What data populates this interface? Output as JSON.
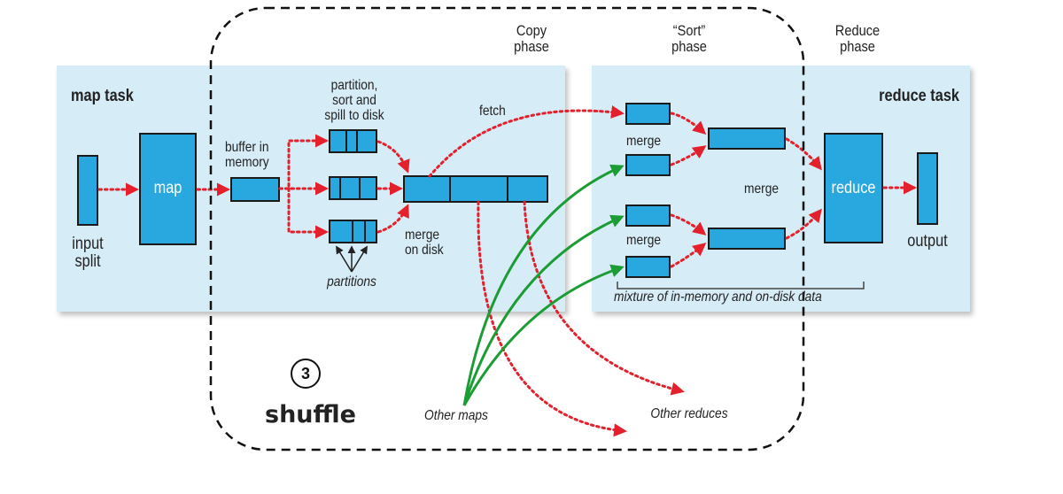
{
  "labels": {
    "copy_phase": "Copy\nphase",
    "sort_phase": "“Sort”\nphase",
    "reduce_phase": "Reduce\nphase",
    "map_task": "map task",
    "reduce_task": "reduce task",
    "partition_sort_spill": "partition,\nsort and\nspill to disk",
    "buffer_in_memory": "buffer in\nmemory",
    "fetch": "fetch",
    "merge_top": "merge",
    "merge_middle": "merge",
    "merge_bottom": "merge",
    "merge_on_disk": "merge\non disk",
    "input_split": "input\nsplit",
    "map": "map",
    "reduce": "reduce",
    "output": "output",
    "partitions": "partitions",
    "mixture": "mixture of in-memory and on-disk data",
    "other_maps": "Other maps",
    "other_reduces": "Other reduces",
    "step_number": "3",
    "shuffle": "shuffle"
  },
  "colors": {
    "panel_fill": "#d6ecf6",
    "box_fill": "#29a8df",
    "box_stroke": "#1a1a1a",
    "red_arrow": "#e3202b",
    "green_arrow": "#1c9c34",
    "dashed_outline": "#111111"
  }
}
